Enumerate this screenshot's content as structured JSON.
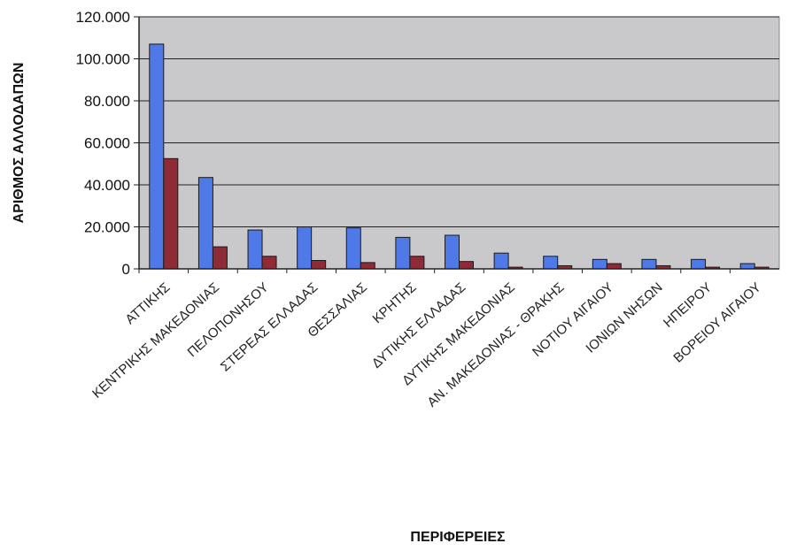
{
  "chart_data": {
    "type": "bar",
    "title": "",
    "xlabel": "ΠΕΡΙΦΕΡΕΙΕΣ",
    "ylabel": "ΑΡΙΘΜΟΣ ΑΛΛΟΔΑΠΩΝ",
    "ylim": [
      0,
      120000
    ],
    "yticks": [
      "0",
      "20.000",
      "40.000",
      "60.000",
      "80.000",
      "100.000",
      "120.000"
    ],
    "grid": true,
    "legend": "none",
    "categories": [
      "ΑΤΤΙΚΗΣ",
      "ΚΕΝΤΡΙΚΗΣ ΜΑΚΕΔΟΝΙΑΣ",
      "ΠΕΛΟΠΟΝΗΣΟΥ",
      "ΣΤΕΡΕΑΣ ΕΛΛΑΔΑΣ",
      "ΘΕΣΣΑΛΙΑΣ",
      "ΚΡΗΤΗΣ",
      "ΔΥΤΙΚΗΣ ΕΛΛΑΔΑΣ",
      "ΔΥΤΙΚΗΣ ΜΑΚΕΔΟΝΙΑΣ",
      "ΑΝ. ΜΑΚΕΔΟΝΙΑΣ - ΘΡΑΚΗΣ",
      "ΝΟΤΙΟΥ ΑΙΓΑΙΟΥ",
      "ΙΟΝΙΩΝ ΝΗΣΩΝ",
      "ΗΠΕΙΡΟΥ",
      "ΒΟΡΕΙΟΥ ΑΙΓΑΙΟΥ"
    ],
    "series": [
      {
        "values": [
          107000,
          43500,
          18500,
          20000,
          19500,
          15000,
          16000,
          7500,
          6000,
          4500,
          4500,
          4500,
          2500
        ],
        "color": "#4f79e6"
      },
      {
        "values": [
          52500,
          10500,
          6000,
          4000,
          3000,
          6000,
          3500,
          800,
          1500,
          2500,
          1500,
          800,
          800
        ],
        "color": "#8e2b36"
      }
    ]
  }
}
